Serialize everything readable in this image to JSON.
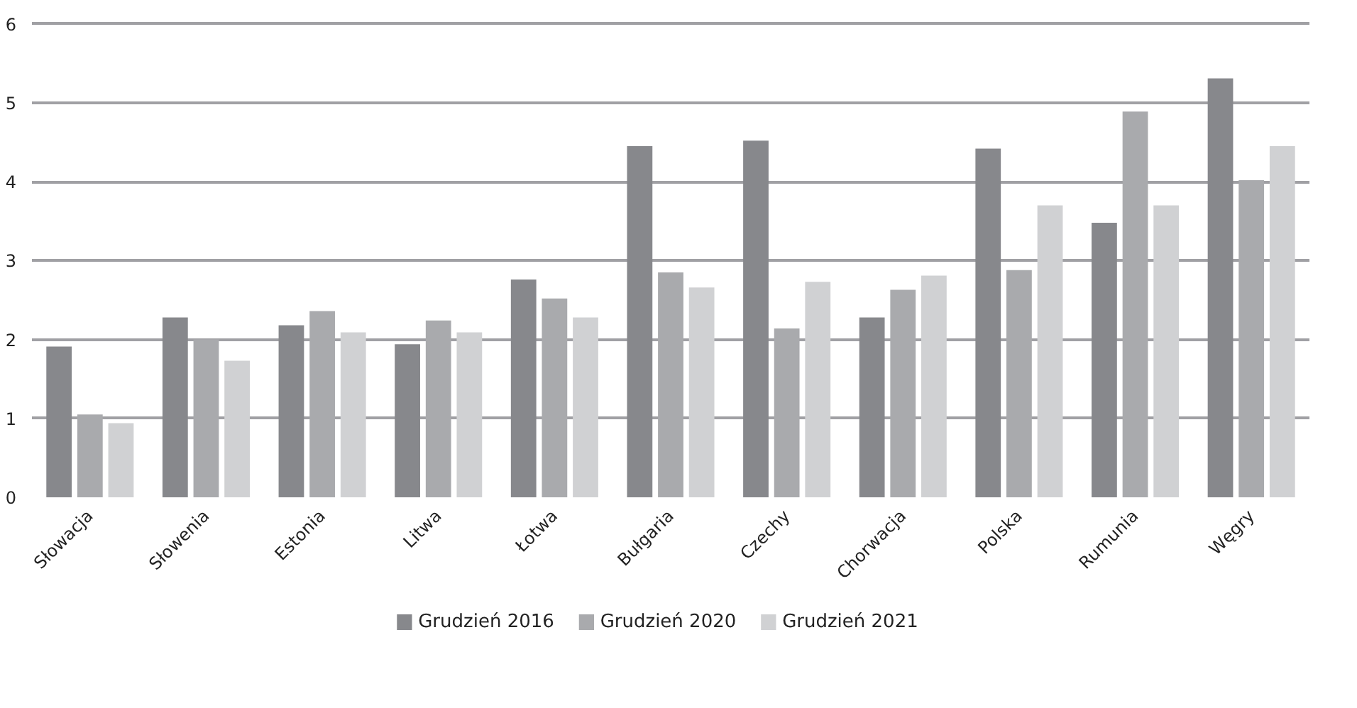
{
  "chart_data": {
    "type": "bar",
    "categories": [
      "Słowacja",
      "Słowenia",
      "Estonia",
      "Litwa",
      "Łotwa",
      "Bułgaria",
      "Czechy",
      "Chorwacja",
      "Polska",
      "Rumunia",
      "Węgry"
    ],
    "series": [
      {
        "name": "Grudzień 2016",
        "color": "#87888c",
        "values": [
          1.91,
          2.28,
          2.18,
          1.94,
          2.76,
          4.45,
          4.52,
          2.28,
          4.42,
          3.48,
          5.31
        ]
      },
      {
        "name": "Grudzień 2020",
        "color": "#a9aaad",
        "values": [
          1.05,
          2.0,
          2.36,
          2.24,
          2.52,
          2.85,
          2.14,
          2.63,
          2.88,
          4.89,
          4.02
        ]
      },
      {
        "name": "Grudzień 2021",
        "color": "#d0d1d3",
        "values": [
          0.94,
          1.73,
          2.09,
          2.09,
          2.28,
          2.66,
          2.73,
          2.81,
          3.7,
          3.7,
          4.45
        ]
      }
    ],
    "ylim": [
      0,
      6
    ],
    "yticks": [
      0,
      1,
      2,
      3,
      4,
      5,
      6
    ],
    "grid": "y",
    "legend": "bottom"
  }
}
